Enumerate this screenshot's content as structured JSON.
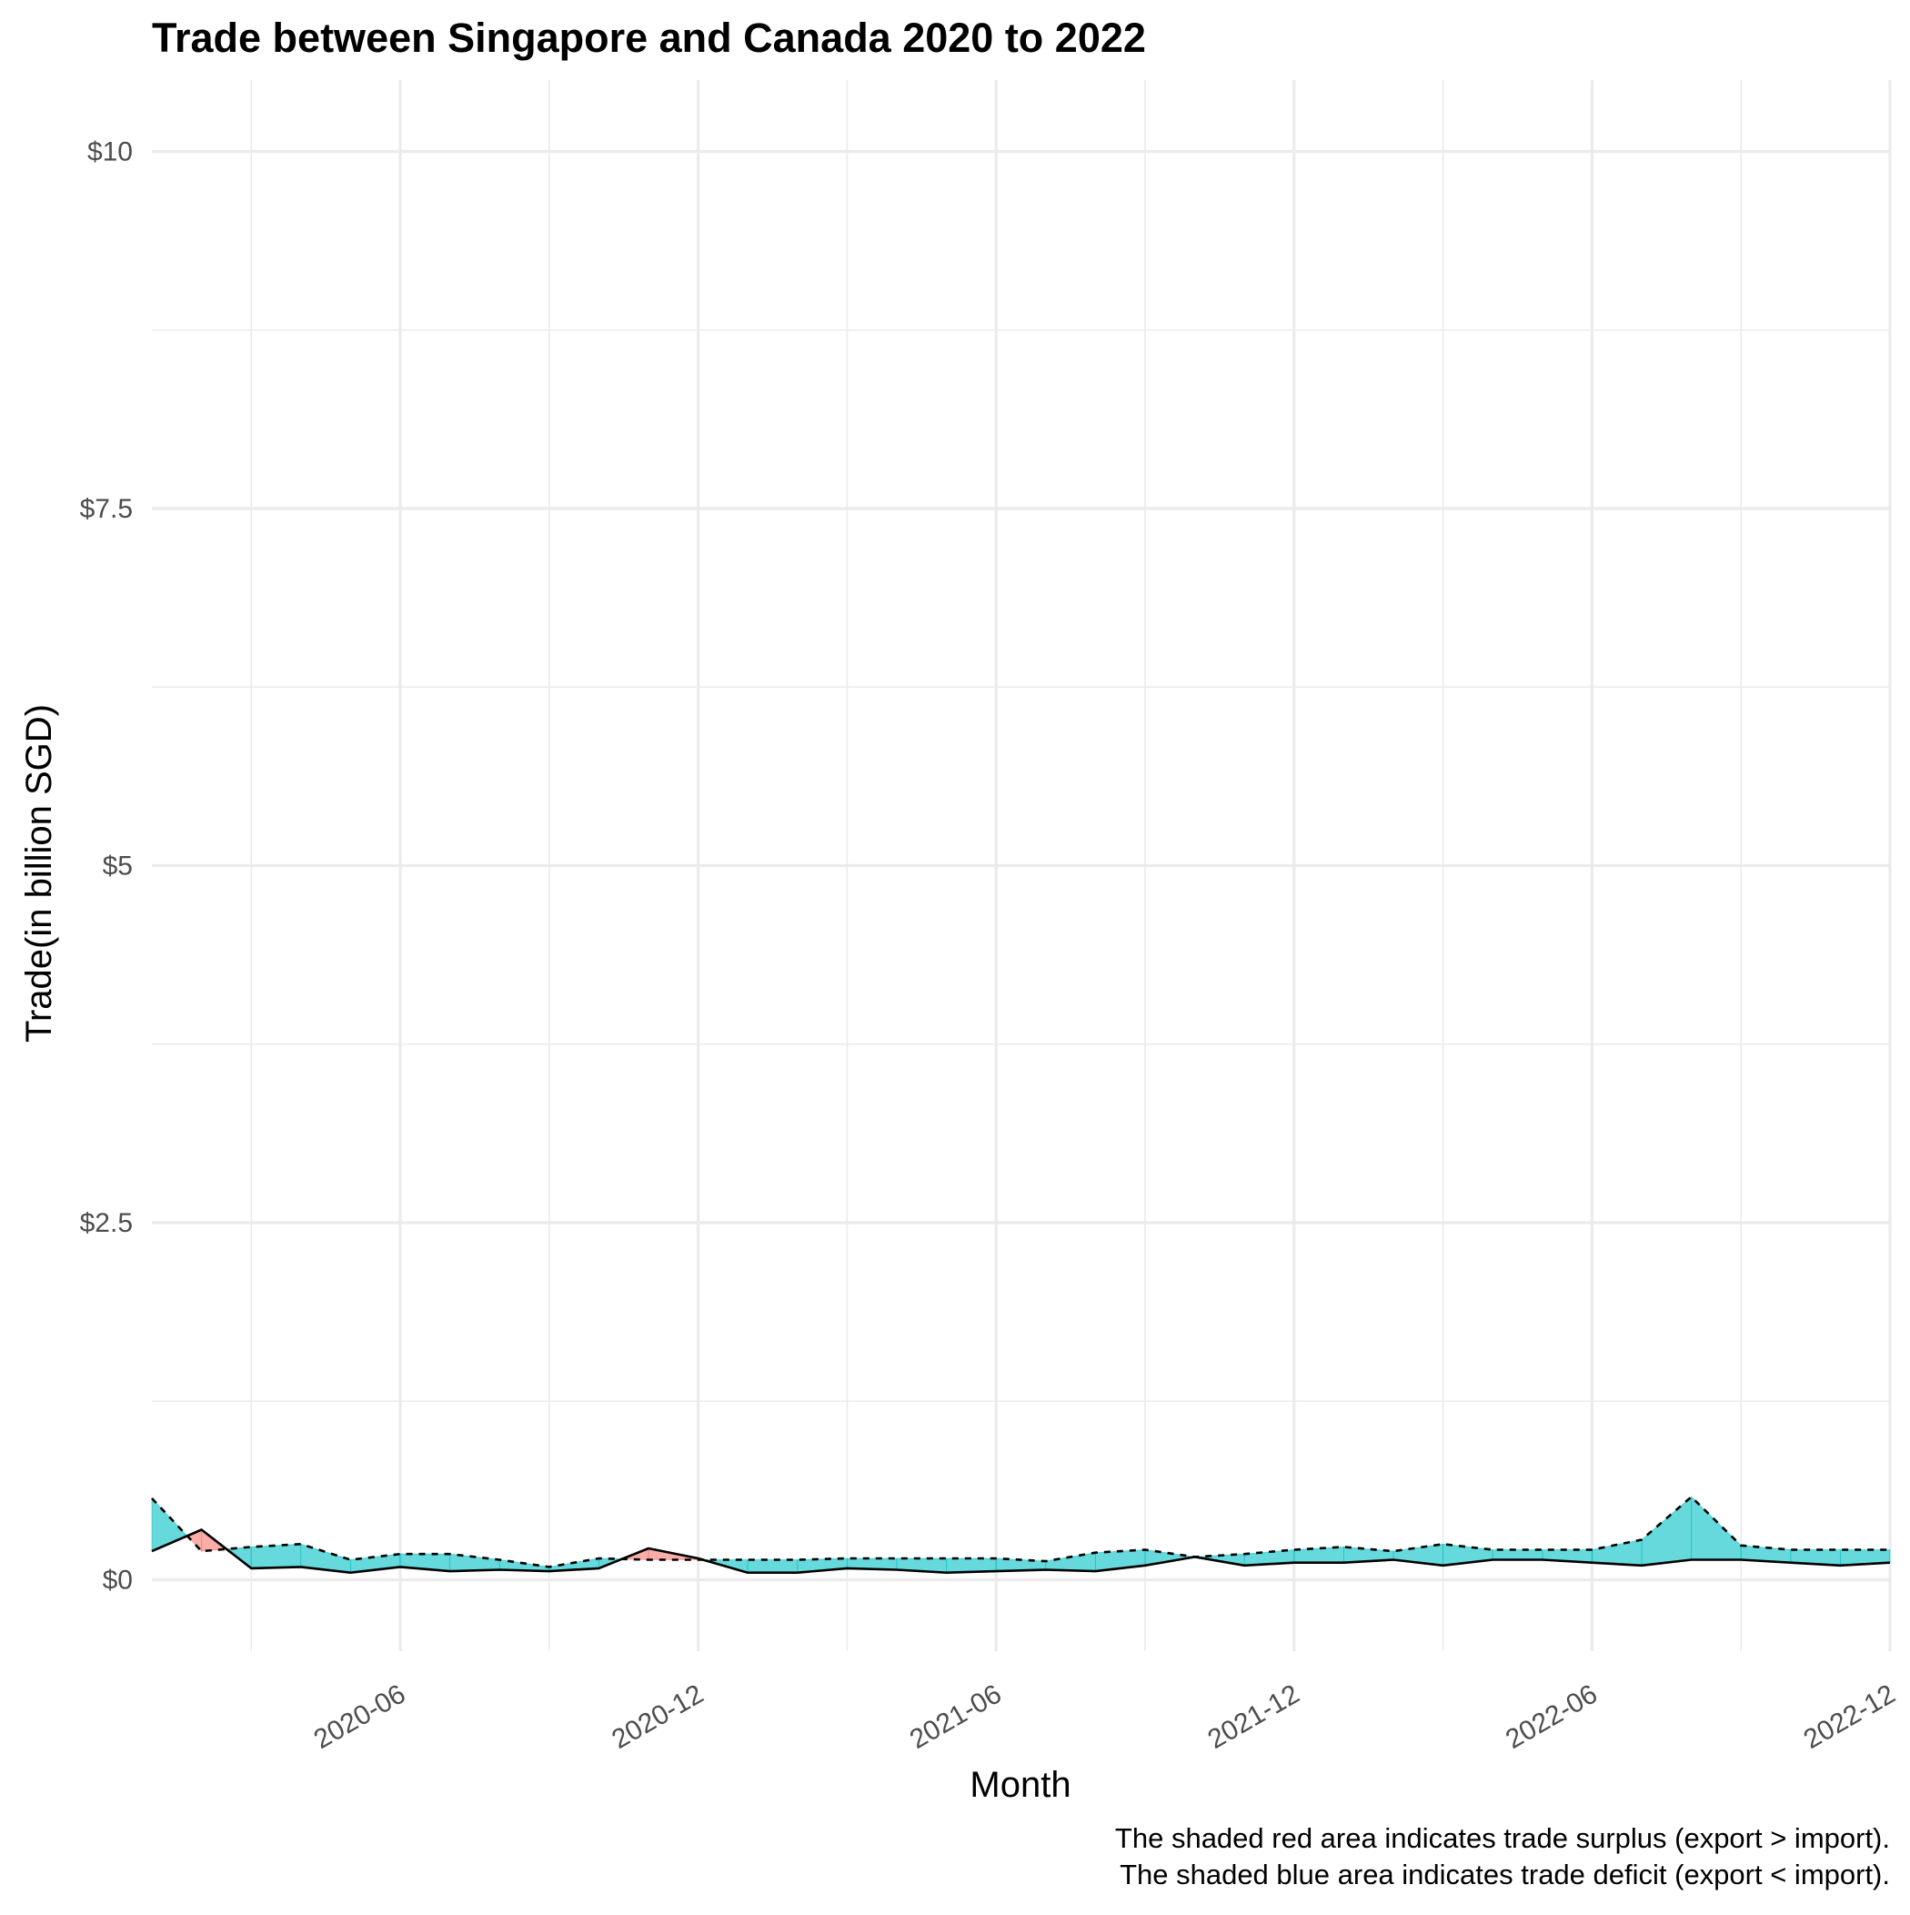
{
  "chart_data": {
    "type": "area",
    "title": "Trade between Singapore and Canada  2020 to 2022",
    "xlabel": "Month",
    "ylabel": "Trade(in billion SGD)",
    "x_tick_labels": [
      "2020-06",
      "2020-12",
      "2021-06",
      "2021-12",
      "2022-06",
      "2022-12"
    ],
    "y_tick_labels": [
      "$0",
      "$2.5",
      "$5",
      "$7.5",
      "$10"
    ],
    "y_tick_values": [
      0,
      2.5,
      5,
      7.5,
      10
    ],
    "ylim": [
      -0.5,
      10.5
    ],
    "xlim": [
      "2020-01",
      "2022-12"
    ],
    "grid": true,
    "caption": [
      "The shaded red area indicates trade surplus (export > import).",
      "The shaded blue area indicates trade deficit (export < import)."
    ],
    "colors": {
      "surplus": "#F8766D",
      "deficit": "#00BFC4"
    },
    "x": [
      "2020-01",
      "2020-02",
      "2020-03",
      "2020-04",
      "2020-05",
      "2020-06",
      "2020-07",
      "2020-08",
      "2020-09",
      "2020-10",
      "2020-11",
      "2020-12",
      "2021-01",
      "2021-02",
      "2021-03",
      "2021-04",
      "2021-05",
      "2021-06",
      "2021-07",
      "2021-08",
      "2021-09",
      "2021-10",
      "2021-11",
      "2021-12",
      "2022-01",
      "2022-02",
      "2022-03",
      "2022-04",
      "2022-05",
      "2022-06",
      "2022-07",
      "2022-08",
      "2022-09",
      "2022-10",
      "2022-11",
      "2022-12"
    ],
    "series": [
      {
        "line": "solid",
        "values": [
          0.2,
          0.35,
          0.08,
          0.09,
          0.05,
          0.09,
          0.06,
          0.07,
          0.06,
          0.08,
          0.22,
          0.15,
          0.05,
          0.05,
          0.08,
          0.07,
          0.05,
          0.06,
          0.07,
          0.06,
          0.1,
          0.16,
          0.1,
          0.12,
          0.12,
          0.14,
          0.1,
          0.14,
          0.14,
          0.12,
          0.1,
          0.14,
          0.14,
          0.12,
          0.1,
          0.12
        ]
      },
      {
        "line": "dashed",
        "values": [
          0.57,
          0.2,
          0.23,
          0.25,
          0.14,
          0.18,
          0.18,
          0.14,
          0.09,
          0.15,
          0.14,
          0.14,
          0.14,
          0.14,
          0.15,
          0.15,
          0.15,
          0.15,
          0.13,
          0.19,
          0.21,
          0.16,
          0.18,
          0.21,
          0.23,
          0.2,
          0.25,
          0.21,
          0.21,
          0.21,
          0.28,
          0.58,
          0.24,
          0.21,
          0.21,
          0.21
        ]
      }
    ]
  }
}
